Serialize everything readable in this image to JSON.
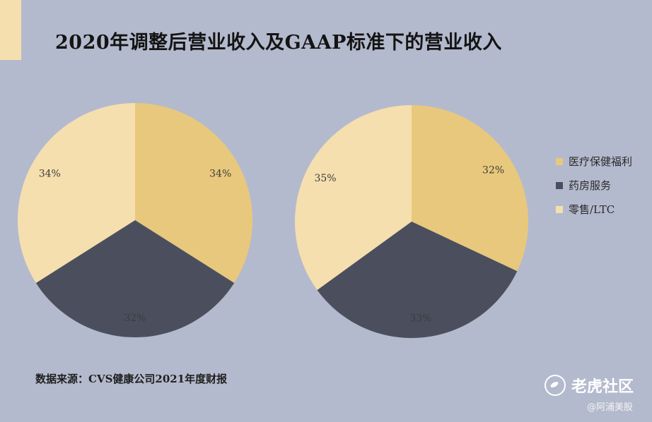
{
  "title": "2020年调整后营业收入及GAAP标准下的营业收入",
  "source": "数据来源：CVS健康公司2021年度财报",
  "watermark": {
    "brand": "老虎社区",
    "handle": "@阿浦美股"
  },
  "colors": {
    "background": "#b4bacd",
    "accent": "#f5dfae"
  },
  "chart_data": [
    {
      "type": "pie",
      "title": "",
      "categories": [
        "医疗保健福利",
        "药房服务",
        "零售/LTC"
      ],
      "values": [
        34,
        32,
        34
      ],
      "labels": [
        "34%",
        "32%",
        "34%"
      ],
      "colors": [
        "#e8c87c",
        "#4b4f5d",
        "#f5dfae"
      ]
    },
    {
      "type": "pie",
      "title": "",
      "categories": [
        "医疗保健福利",
        "药房服务",
        "零售/LTC"
      ],
      "values": [
        32,
        33,
        35
      ],
      "labels": [
        "32%",
        "33%",
        "35%"
      ],
      "colors": [
        "#e8c87c",
        "#4b4f5d",
        "#f5dfae"
      ]
    }
  ],
  "legend": {
    "placement": "right",
    "items": [
      {
        "label": "医疗保健福利",
        "color": "#e8c87c"
      },
      {
        "label": "药房服务",
        "color": "#4b4f5d"
      },
      {
        "label": "零售/LTC",
        "color": "#f5dfae"
      }
    ]
  }
}
